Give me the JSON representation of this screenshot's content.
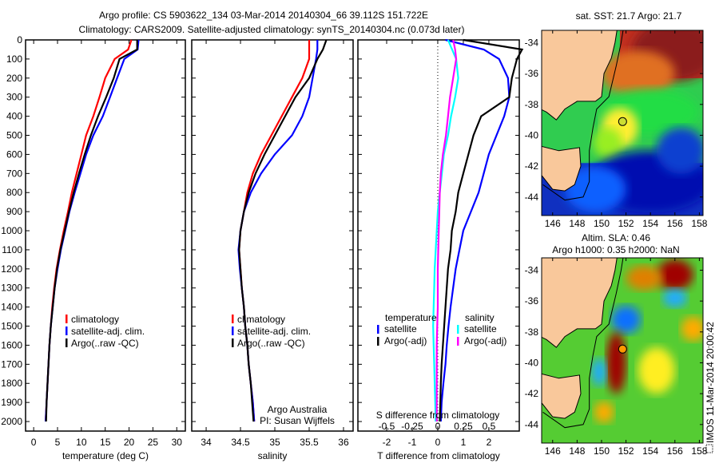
{
  "title": {
    "line1": "Argo profile: CS 5903622_134 03-Mar-2014 20140304_66 39.112S 151.722E",
    "line2": "Climatology: CARS2009. Satellite-adjusted climatology: synTS_20140304.nc (0.073d later)"
  },
  "chart_data": [
    {
      "type": "line",
      "id": "temperature",
      "xlabel": "temperature (deg C)",
      "xlim": [
        -1.7,
        31.8
      ],
      "xticks": [
        0,
        5,
        10,
        15,
        20,
        25,
        30
      ],
      "ylim": [
        0,
        2050
      ],
      "yticks": [
        0,
        100,
        200,
        300,
        400,
        500,
        600,
        700,
        800,
        900,
        1000,
        1100,
        1200,
        1300,
        1400,
        1500,
        1600,
        1700,
        1800,
        1900,
        2000
      ],
      "depth": [
        0,
        50,
        100,
        200,
        300,
        400,
        500,
        600,
        700,
        800,
        900,
        1000,
        1100,
        1200,
        1300,
        1400,
        1500,
        1600,
        1700,
        1800,
        1900,
        2000
      ],
      "legend": [
        "climatology",
        "satellite-adj. clim.",
        "Argo(..raw -QC)"
      ],
      "series": [
        {
          "name": "climatology",
          "color": "#ff0000",
          "values": [
            20.5,
            19.8,
            17,
            15,
            13.8,
            12.5,
            11,
            10,
            9,
            8,
            7.2,
            6.3,
            5.5,
            4.8,
            4.3,
            3.9,
            3.6,
            3.3,
            3.1,
            2.9,
            2.7,
            2.5
          ]
        },
        {
          "name": "satellite-adj. clim.",
          "color": "#0000ff",
          "values": [
            22,
            21.8,
            19,
            17.5,
            16,
            14.5,
            12.5,
            11,
            9.8,
            8.6,
            7.5,
            6.6,
            5.7,
            5,
            4.4,
            4,
            3.6,
            3.3,
            3.1,
            2.9,
            2.7,
            2.5
          ]
        },
        {
          "name": "Argo(..raw -QC)",
          "color": "#000000",
          "values": [
            21.7,
            21.7,
            18,
            16.8,
            15.2,
            13.5,
            12,
            10.7,
            9.5,
            8.4,
            7.4,
            6.5,
            5.6,
            4.9,
            4.4,
            4,
            3.6,
            3.3,
            3.1,
            2.9,
            2.7,
            2.6
          ]
        }
      ]
    },
    {
      "type": "line",
      "id": "salinity",
      "xlabel": "salinity",
      "xlim": [
        33.79,
        36.14
      ],
      "xticks": [
        34,
        34.5,
        35,
        35.5,
        36
      ],
      "ylim": [
        0,
        2050
      ],
      "depth": [
        0,
        50,
        100,
        200,
        300,
        400,
        500,
        600,
        700,
        800,
        900,
        1000,
        1100,
        1200,
        1300,
        1400,
        1500,
        1600,
        1700,
        1800,
        1900,
        2000
      ],
      "legend": [
        "climatology",
        "satellite-adj. clim.",
        "Argo(..raw -QC)"
      ],
      "annotation": [
        "Argo Australia",
        "PI: Susan Wijffels"
      ],
      "series": [
        {
          "name": "climatology",
          "color": "#ff0000",
          "values": [
            35.5,
            35.5,
            35.5,
            35.4,
            35.25,
            35.1,
            34.95,
            34.8,
            34.68,
            34.6,
            34.55,
            34.5,
            34.48,
            34.5,
            34.52,
            34.55,
            34.57,
            34.6,
            34.62,
            34.65,
            34.68,
            34.7
          ]
        },
        {
          "name": "satellite-adj. clim.",
          "color": "#0000ff",
          "values": [
            35.62,
            35.62,
            35.6,
            35.55,
            35.5,
            35.4,
            35.25,
            35.0,
            34.8,
            34.65,
            34.55,
            34.5,
            34.47,
            34.49,
            34.52,
            34.55,
            34.57,
            34.6,
            34.62,
            34.65,
            34.68,
            34.7
          ]
        },
        {
          "name": "Argo(..raw -QC)",
          "color": "#000000",
          "values": [
            35.75,
            35.7,
            35.62,
            35.5,
            35.3,
            35.15,
            35.0,
            34.85,
            34.72,
            34.62,
            34.55,
            34.5,
            34.48,
            34.5,
            34.52,
            34.55,
            34.57,
            34.6,
            34.62,
            34.65,
            34.67,
            34.69
          ]
        }
      ]
    },
    {
      "type": "line",
      "id": "difference",
      "xlabel": "T difference from climatology",
      "xlabel2": "S difference from climatology",
      "xlim": [
        -3.125,
        3.19
      ],
      "xticks": [
        -2,
        -1,
        0,
        1,
        2
      ],
      "xticks2": [
        "-0.5",
        "-0.25",
        "0",
        "0.25",
        "0.5"
      ],
      "xticks2_values": [
        -0.5,
        -0.25,
        0,
        0.25,
        0.5
      ],
      "ylim": [
        0,
        2050
      ],
      "depth": [
        0,
        50,
        100,
        200,
        300,
        400,
        500,
        600,
        700,
        800,
        900,
        1000,
        1100,
        1200,
        1300,
        1400,
        1500,
        1600,
        1700,
        1800,
        1900,
        2000
      ],
      "legend_headers": [
        "temperature",
        "salinity"
      ],
      "legend": [
        "satellite",
        "Argo(-adj)",
        "satellite",
        "Argo(-adj)"
      ],
      "series": [
        {
          "name": "T satellite",
          "unit": "T",
          "color": "#0000ff",
          "values": [
            0.3,
            1.8,
            2.4,
            2.75,
            2.8,
            2.6,
            2.3,
            2.0,
            1.8,
            1.6,
            1.3,
            1.0,
            0.85,
            0.7,
            0.6,
            0.5,
            0.42,
            0.35,
            0.3,
            0.22,
            0.15,
            0.12
          ]
        },
        {
          "name": "T Argo(-adj)",
          "unit": "T",
          "color": "#000000",
          "values": [
            1.0,
            3.3,
            3.1,
            2.9,
            2.8,
            1.7,
            1.4,
            1.2,
            1.0,
            0.8,
            0.7,
            0.55,
            0.5,
            0.4,
            0.35,
            0.3,
            0.25,
            0.2,
            0.15,
            0.12,
            0.1,
            0.08
          ]
        },
        {
          "name": "S satellite",
          "unit": "S",
          "color": "#00ffff",
          "values": [
            0.1,
            0.14,
            0.18,
            0.2,
            0.17,
            0.13,
            0.1,
            0.06,
            0.04,
            0.02,
            0.0,
            -0.01,
            -0.02,
            -0.03,
            -0.035,
            -0.04,
            -0.045,
            -0.04,
            -0.035,
            -0.03,
            -0.025,
            -0.02
          ]
        },
        {
          "name": "S Argo(-adj)",
          "unit": "S",
          "color": "#ff00ff",
          "values": [
            0.15,
            0.17,
            0.18,
            0.15,
            0.12,
            0.1,
            0.08,
            0.05,
            0.03,
            0.02,
            0.015,
            0.01,
            0.005,
            0.0,
            0.0,
            0.0,
            -0.005,
            -0.01,
            -0.01,
            -0.01,
            -0.01,
            -0.01
          ]
        }
      ]
    }
  ],
  "maps": [
    {
      "id": "sst",
      "title": "sat. SST: 21.7 Argo: 21.7",
      "lon_ticks": [
        146,
        148,
        150,
        152,
        154,
        156,
        158
      ],
      "lat_ticks": [
        "-34",
        "-36",
        "-38",
        "-40",
        "-42",
        "-44"
      ],
      "marker": [
        151.722,
        -39.112
      ]
    },
    {
      "id": "sla",
      "title1": "Altim. SLA: 0.46",
      "title2": "Argo h1000: 0.35 h2000: NaN",
      "lon_ticks": [
        146,
        148,
        150,
        152,
        154,
        156,
        158
      ],
      "lat_ticks": [
        "-34",
        "-36",
        "-38",
        "-40",
        "-42",
        "-44"
      ],
      "marker": [
        151.722,
        -39.112
      ],
      "credit": "IMOS 11-Mar-2014 20:00:42"
    }
  ]
}
